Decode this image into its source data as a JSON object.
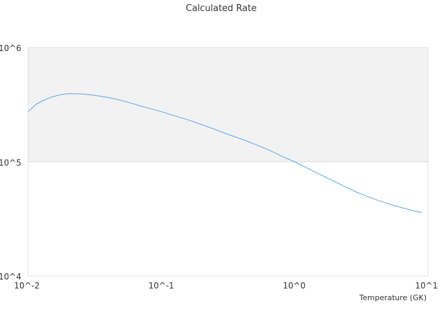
{
  "chart_data": {
    "type": "line",
    "title": "Calculated Rate",
    "xlabel": "Temperature (GK)",
    "ylabel": "",
    "xscale": "log",
    "yscale": "log",
    "xlim": [
      0.01,
      10
    ],
    "ylim": [
      10000,
      1000000
    ],
    "x_tick_labels": [
      "10^-2",
      "10^-1",
      "10^0",
      "10^1"
    ],
    "y_tick_labels": [
      "10^6",
      "10^5",
      "10^4"
    ],
    "grid": true,
    "legend": "none",
    "line_color": "#5aa5e6",
    "band_color": "#f2f2f2",
    "series": [
      {
        "points": [
          [
            0.01,
            275000
          ],
          [
            0.0115,
            320000
          ],
          [
            0.013,
            345000
          ],
          [
            0.015,
            370000
          ],
          [
            0.018,
            390000
          ],
          [
            0.02,
            395000
          ],
          [
            0.025,
            393000
          ],
          [
            0.03,
            385000
          ],
          [
            0.035,
            375000
          ],
          [
            0.04,
            365000
          ],
          [
            0.05,
            345000
          ],
          [
            0.06,
            325000
          ],
          [
            0.07,
            308000
          ],
          [
            0.08,
            295000
          ],
          [
            0.1,
            275000
          ],
          [
            0.12,
            257000
          ],
          [
            0.15,
            238000
          ],
          [
            0.2,
            212000
          ],
          [
            0.25,
            193000
          ],
          [
            0.3,
            178000
          ],
          [
            0.4,
            158000
          ],
          [
            0.5,
            143000
          ],
          [
            0.6,
            131000
          ],
          [
            0.7,
            121000
          ],
          [
            0.8,
            112000
          ],
          [
            1.0,
            100000
          ],
          [
            1.2,
            90000
          ],
          [
            1.5,
            79000
          ],
          [
            2.0,
            67000
          ],
          [
            2.5,
            59000
          ],
          [
            3.0,
            53500
          ],
          [
            4.0,
            47000
          ],
          [
            5.0,
            43000
          ],
          [
            6.0,
            40500
          ],
          [
            7.0,
            38500
          ],
          [
            8.0,
            37000
          ],
          [
            9.0,
            36000
          ]
        ]
      }
    ]
  }
}
